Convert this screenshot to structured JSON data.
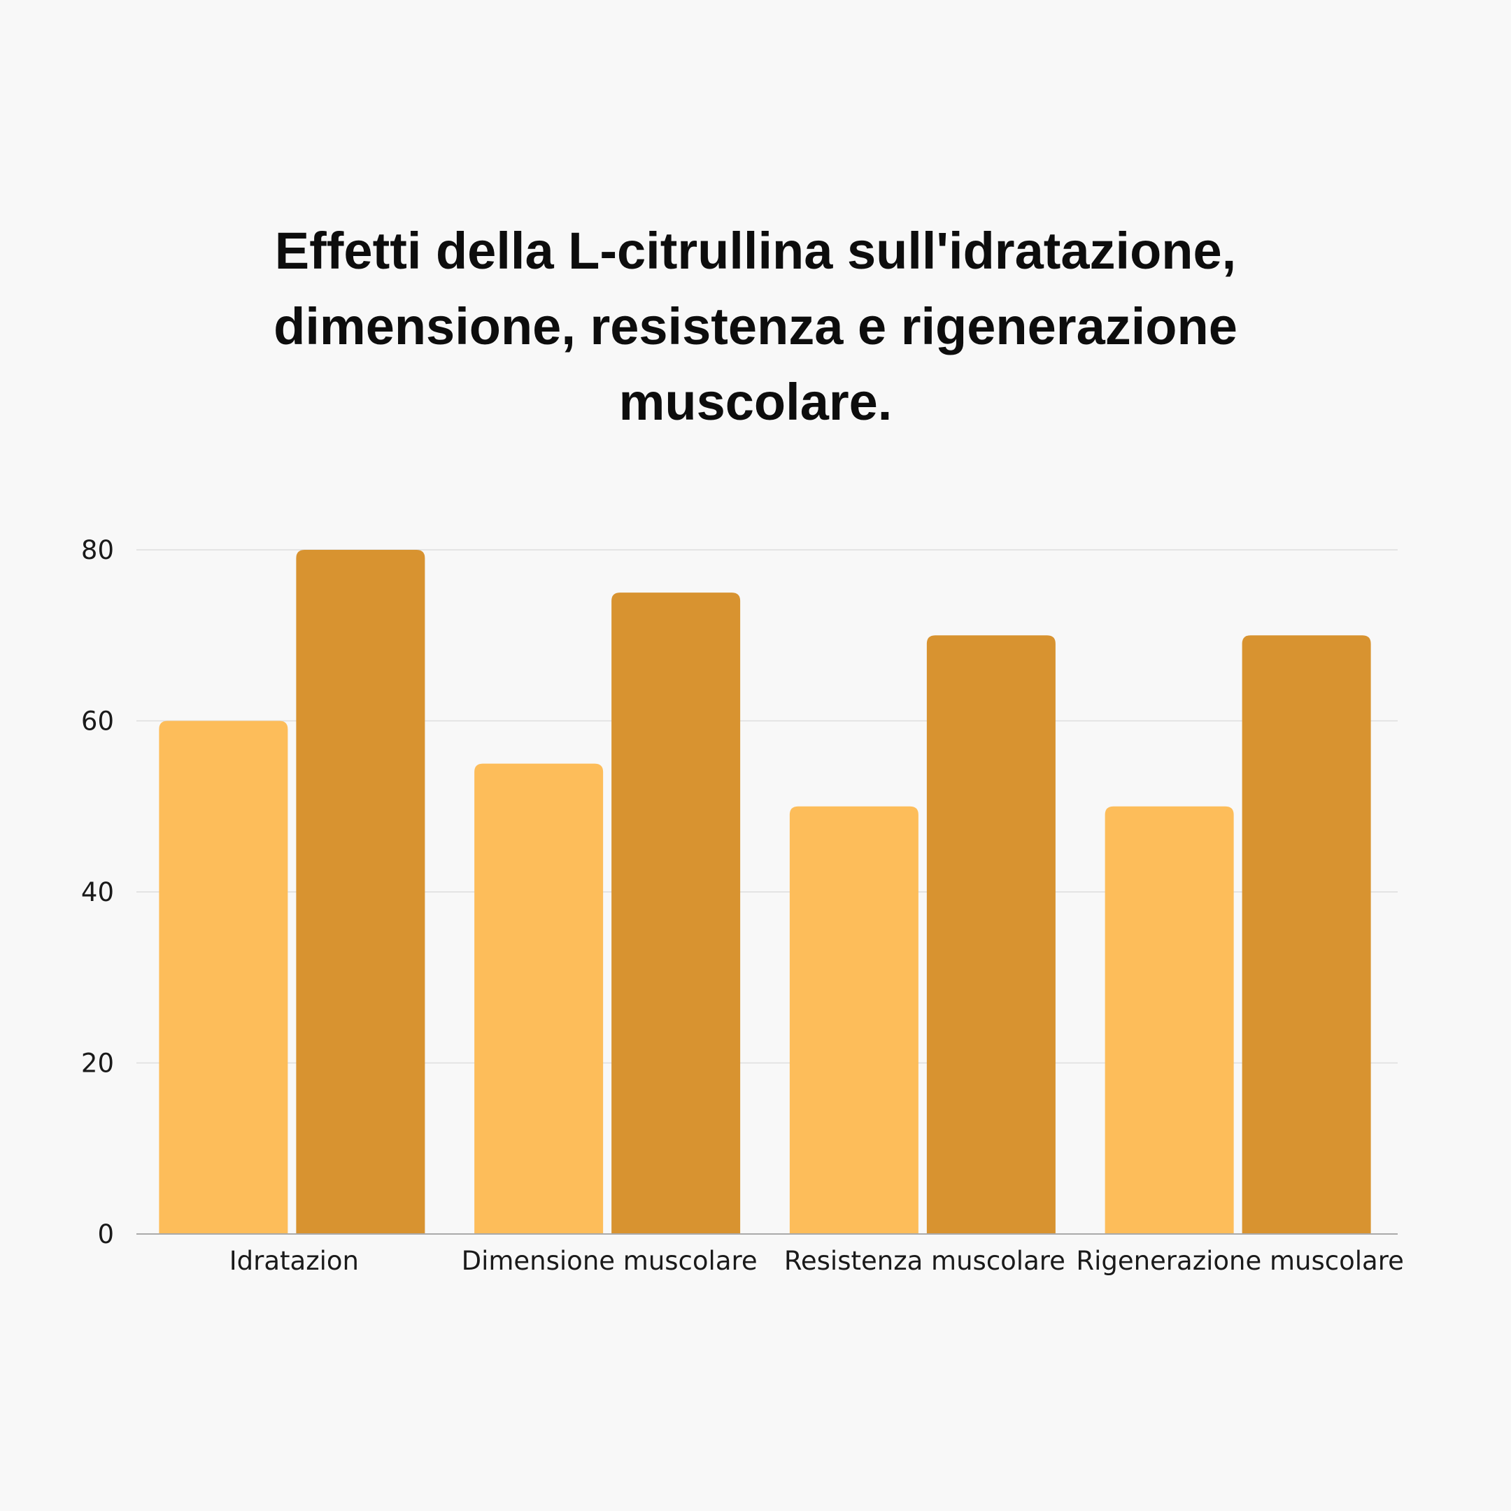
{
  "chart_data": {
    "type": "bar",
    "title": "Effetti della L-citrullina sull'idratazione,\ndimensione, resistenza e rigenerazione\nmuscolare.",
    "xlabel": "",
    "ylabel": "",
    "categories": [
      "Idratazion",
      "Dimensione muscolare",
      "Resistenza muscolare",
      "Rigenerazione muscolare"
    ],
    "series": [
      {
        "color": "#fdbd5a",
        "values": [
          60,
          55,
          50,
          50
        ]
      },
      {
        "color": "#d89330",
        "values": [
          80,
          75,
          70,
          70
        ]
      }
    ],
    "ylim": [
      0,
      80
    ],
    "yticks": [
      0,
      20,
      40,
      60,
      80
    ],
    "grid": true,
    "legend": "none"
  },
  "colors": {
    "background": "#f8f8f8",
    "gridline": "#dedede",
    "axis": "#aaaaaa",
    "text": "#1a1a1a"
  }
}
